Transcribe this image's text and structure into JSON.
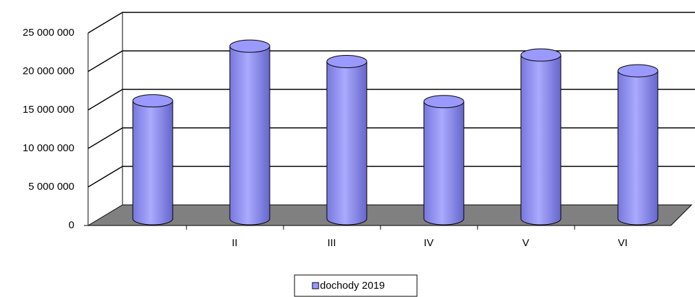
{
  "chart_data": {
    "type": "bar3d",
    "categories": [
      null,
      "II",
      "III",
      "IV",
      "V",
      "VI"
    ],
    "series": [
      {
        "name": "dochody 2019",
        "color": "#9999ff",
        "values": [
          15300000,
          22400000,
          20400000,
          15200000,
          21250000,
          19200000
        ]
      }
    ],
    "ylim": [
      0,
      25000000
    ],
    "yticks": [
      0,
      {
        "value": 5000000,
        "label": "5 000 000"
      },
      {
        "value": 10000000,
        "label": "10 000 000"
      },
      {
        "value": 15000000,
        "label": "15 000 000"
      },
      {
        "value": 20000000,
        "label": "20 000 000"
      },
      {
        "value": 25000000,
        "label": "25 000 000"
      }
    ],
    "grid": true,
    "legend": "bottom"
  }
}
